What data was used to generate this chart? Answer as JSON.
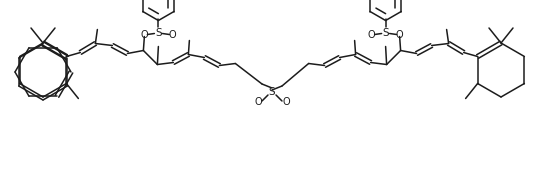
{
  "bg": "#ffffff",
  "lc": "#1c1c1c",
  "lw": 1.1,
  "fw": 5.44,
  "fh": 1.82,
  "dpi": 100,
  "xlim": [
    0,
    544
  ],
  "ylim": [
    0,
    182
  ]
}
